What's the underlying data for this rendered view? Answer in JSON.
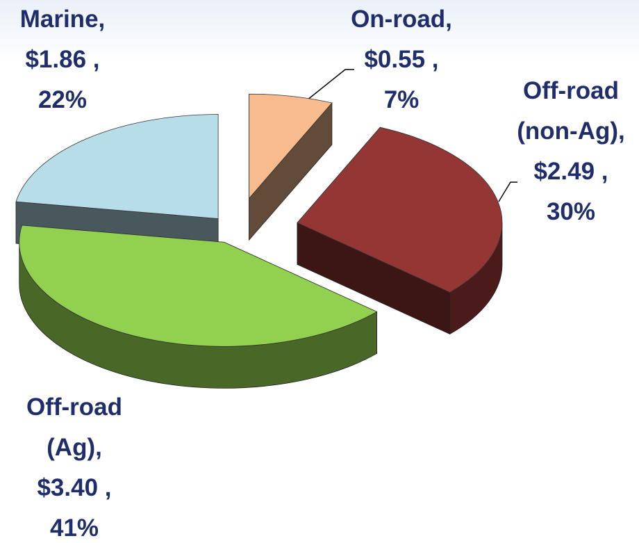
{
  "chart_data": {
    "type": "pie3d",
    "categories": [
      "On-road,",
      "Off-road (non-Ag),",
      "Off-road (Ag),",
      "Marine,"
    ],
    "values": [
      0.55,
      2.49,
      3.4,
      1.86
    ],
    "value_labels": [
      "$0.55 ,",
      "$2.49 ,",
      "$3.40 ,",
      "$1.86 ,"
    ],
    "percent_values": [
      7,
      30,
      41,
      22
    ],
    "percent_labels": [
      "7%",
      "30%",
      "41%",
      "22%"
    ],
    "colors": [
      "#f7bb8e",
      "#943634",
      "#92d050",
      "#b7dde8"
    ]
  }
}
